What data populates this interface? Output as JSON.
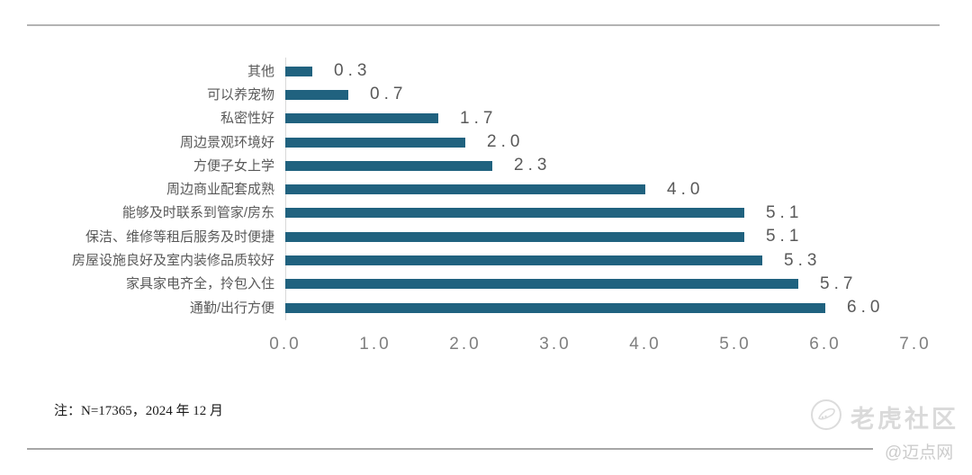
{
  "chart_data": {
    "type": "bar",
    "orientation": "horizontal",
    "title": "",
    "xlabel": "",
    "ylabel": "",
    "categories": [
      "其他",
      "可以养宠物",
      "私密性好",
      "周边景观环境好",
      "方便子女上学",
      "周边商业配套成熟",
      "能够及时联系到管家/房东",
      "保洁、维修等租后服务及时便捷",
      "房屋设施良好及室内装修品质较好",
      "家具家电齐全，拎包入住",
      "通勤/出行方便"
    ],
    "values": [
      0.3,
      0.7,
      1.7,
      2.0,
      2.3,
      4.0,
      5.1,
      5.1,
      5.3,
      5.7,
      6.0
    ],
    "value_labels": [
      "0.3",
      "0.7",
      "1.7",
      "2.0",
      "2.3",
      "4.0",
      "5.1",
      "5.1",
      "5.3",
      "5.7",
      "6.0"
    ],
    "xlim": [
      0,
      7
    ],
    "x_ticks": [
      "0.0",
      "1.0",
      "2.0",
      "3.0",
      "4.0",
      "5.0",
      "6.0",
      "7.0"
    ],
    "bar_color": "#20627F",
    "grid": false,
    "legend_position": "none"
  },
  "note": "注：N=17365，2024 年 12 月",
  "watermark": {
    "community": "老虎社区",
    "site": "@迈点网",
    "logo_icon": "tiger-circle-logo"
  },
  "colors": {
    "bar": "#20627F",
    "category_label": "#595959",
    "value_label": "#595959",
    "tick_label": "#7f7f7f",
    "divider": "#b3b3b3",
    "watermark": "#dadada"
  }
}
